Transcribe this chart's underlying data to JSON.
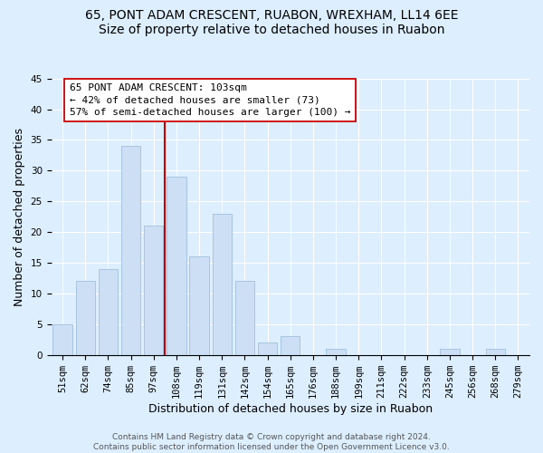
{
  "title": "65, PONT ADAM CRESCENT, RUABON, WREXHAM, LL14 6EE",
  "subtitle": "Size of property relative to detached houses in Ruabon",
  "xlabel": "Distribution of detached houses by size in Ruabon",
  "ylabel": "Number of detached properties",
  "bar_labels": [
    "51sqm",
    "62sqm",
    "74sqm",
    "85sqm",
    "97sqm",
    "108sqm",
    "119sqm",
    "131sqm",
    "142sqm",
    "154sqm",
    "165sqm",
    "176sqm",
    "188sqm",
    "199sqm",
    "211sqm",
    "222sqm",
    "233sqm",
    "245sqm",
    "256sqm",
    "268sqm",
    "279sqm"
  ],
  "bar_values": [
    5,
    12,
    14,
    34,
    21,
    29,
    16,
    23,
    12,
    2,
    3,
    0,
    1,
    0,
    0,
    0,
    0,
    1,
    0,
    1,
    0
  ],
  "bar_color": "#ccdff5",
  "bar_edge_color": "#a8c4e0",
  "vline_color": "#cc0000",
  "annotation_line1": "65 PONT ADAM CRESCENT: 103sqm",
  "annotation_line2": "← 42% of detached houses are smaller (73)",
  "annotation_line3": "57% of semi-detached houses are larger (100) →",
  "annotation_box_color": "#ffffff",
  "annotation_border_color": "#cc0000",
  "ylim": [
    0,
    45
  ],
  "yticks": [
    0,
    5,
    10,
    15,
    20,
    25,
    30,
    35,
    40,
    45
  ],
  "footer1": "Contains HM Land Registry data © Crown copyright and database right 2024.",
  "footer2": "Contains public sector information licensed under the Open Government Licence v3.0.",
  "fig_bg_color": "#ddeeff",
  "plot_bg_color": "#ddeeff",
  "title_fontsize": 10,
  "axis_label_fontsize": 9,
  "tick_fontsize": 7.5,
  "annotation_fontsize": 8,
  "footer_fontsize": 6.5
}
